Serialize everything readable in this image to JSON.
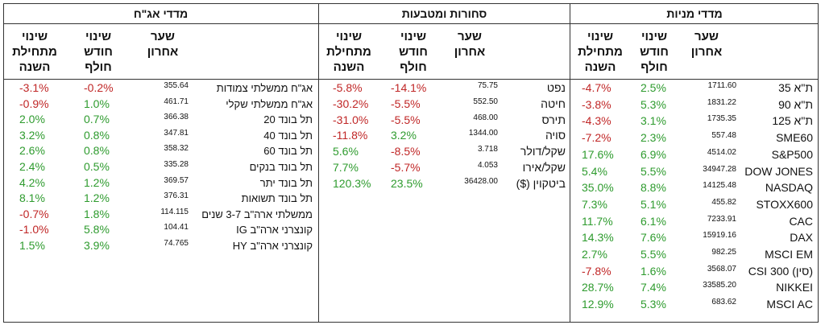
{
  "colors": {
    "positive": "#2e9b2e",
    "negative": "#c02626",
    "border": "#333333"
  },
  "headers": {
    "change_ytd": "שינוי מתחילת השנה",
    "change_month": "שינוי חודש חולף",
    "last_price": "שער אחרון"
  },
  "bonds": {
    "title": "מדדי אג\"ח",
    "rows": [
      {
        "name": "אג\"ח ממשלתי צמודות",
        "price": "355.64",
        "month": "-0.2%",
        "ytd": "-3.1%"
      },
      {
        "name": "אג\"ח ממשלתי שקלי",
        "price": "461.71",
        "month": "1.0%",
        "ytd": "-0.9%"
      },
      {
        "name": "תל בונד 20",
        "price": "366.38",
        "month": "0.7%",
        "ytd": "2.0%"
      },
      {
        "name": "תל בונד 40",
        "price": "347.81",
        "month": "0.8%",
        "ytd": "3.2%"
      },
      {
        "name": "תל בונד 60",
        "price": "358.32",
        "month": "0.8%",
        "ytd": "2.6%"
      },
      {
        "name": "תל בונד בנקים",
        "price": "335.28",
        "month": "0.5%",
        "ytd": "2.4%"
      },
      {
        "name": "תל בונד יתר",
        "price": "369.57",
        "month": "1.2%",
        "ytd": "4.2%"
      },
      {
        "name": "תל בונד תשואות",
        "price": "376.31",
        "month": "1.2%",
        "ytd": "8.1%"
      },
      {
        "name": "ממשלתי ארה\"ב 3-7 שנים",
        "price": "114.115",
        "month": "1.8%",
        "ytd": "-0.7%"
      },
      {
        "name": "קונצרני ארה\"ב IG",
        "price": "104.41",
        "month": "5.8%",
        "ytd": "-1.0%"
      },
      {
        "name": "קונצרני ארה\"ב HY",
        "price": "74.765",
        "month": "3.9%",
        "ytd": "1.5%"
      }
    ]
  },
  "commodities": {
    "title": "סחורות ומטבעות",
    "rows": [
      {
        "name": "נפט",
        "price": "75.75",
        "month": "-14.1%",
        "ytd": "-5.8%"
      },
      {
        "name": "חיטה",
        "price": "552.50",
        "month": "-5.5%",
        "ytd": "-30.2%"
      },
      {
        "name": "תירס",
        "price": "468.00",
        "month": "-5.5%",
        "ytd": "-31.0%"
      },
      {
        "name": "סויה",
        "price": "1344.00",
        "month": "3.2%",
        "ytd": "-11.8%"
      },
      {
        "name": "שקל/דולר",
        "price": "3.718",
        "month": "-8.5%",
        "ytd": "5.6%"
      },
      {
        "name": "שקל/אירו",
        "price": "4.053",
        "month": "-5.7%",
        "ytd": "7.7%"
      },
      {
        "name": "ביטקוין ($)",
        "price": "36428.00",
        "month": "23.5%",
        "ytd": "120.3%"
      }
    ]
  },
  "stocks": {
    "title": "מדדי מניות",
    "rows": [
      {
        "name": "ת\"א 35",
        "price": "1711.60",
        "month": "2.5%",
        "ytd": "-4.7%"
      },
      {
        "name": "ת\"א 90",
        "price": "1831.22",
        "month": "5.3%",
        "ytd": "-3.8%"
      },
      {
        "name": "ת\"א 125",
        "price": "1735.35",
        "month": "3.1%",
        "ytd": "-4.3%"
      },
      {
        "name": "SME60",
        "price": "557.48",
        "month": "2.3%",
        "ytd": "-7.2%"
      },
      {
        "name": "S&P500",
        "price": "4514.02",
        "month": "6.9%",
        "ytd": "17.6%"
      },
      {
        "name": "DOW JONES",
        "price": "34947.28",
        "month": "5.5%",
        "ytd": "5.4%"
      },
      {
        "name": "NASDAQ",
        "price": "14125.48",
        "month": "8.8%",
        "ytd": "35.0%"
      },
      {
        "name": "STOXX600",
        "price": "455.82",
        "month": "5.1%",
        "ytd": "7.3%"
      },
      {
        "name": "CAC",
        "price": "7233.91",
        "month": "6.1%",
        "ytd": "11.7%"
      },
      {
        "name": "DAX",
        "price": "15919.16",
        "month": "7.6%",
        "ytd": "14.3%"
      },
      {
        "name": "MSCI EM",
        "price": "982.25",
        "month": "5.5%",
        "ytd": "2.7%"
      },
      {
        "name": "CSI 300 (סין)",
        "price": "3568.07",
        "month": "1.6%",
        "ytd": "-7.8%"
      },
      {
        "name": "NIKKEI",
        "price": "33585.20",
        "month": "7.4%",
        "ytd": "28.7%"
      },
      {
        "name": "MSCI AC",
        "price": "683.62",
        "month": "5.3%",
        "ytd": "12.9%"
      }
    ]
  }
}
